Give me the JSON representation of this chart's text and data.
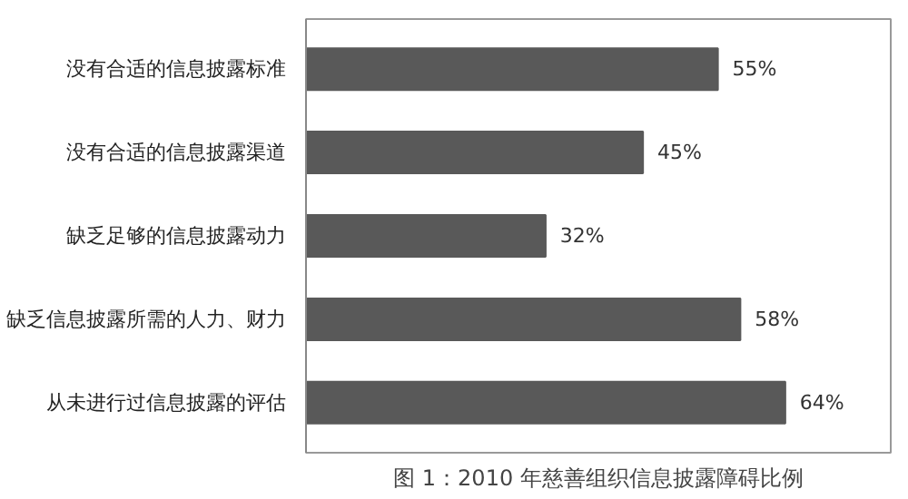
{
  "chart_data": {
    "type": "bar",
    "orientation": "horizontal",
    "title": "图 1：2010 年慈善组织信息披露障碍比例",
    "categories": [
      "没有合适的信息披露标准",
      "没有合适的信息披露渠道",
      "缺乏足够的信息披露动力",
      "缺乏信息披露所需的人力、财力",
      "从未进行过信息披露的评估"
    ],
    "values": [
      55,
      45,
      32,
      58,
      64
    ],
    "value_labels": [
      "55%",
      "45%",
      "32%",
      "58%",
      "64%"
    ],
    "color": "#595959"
  }
}
